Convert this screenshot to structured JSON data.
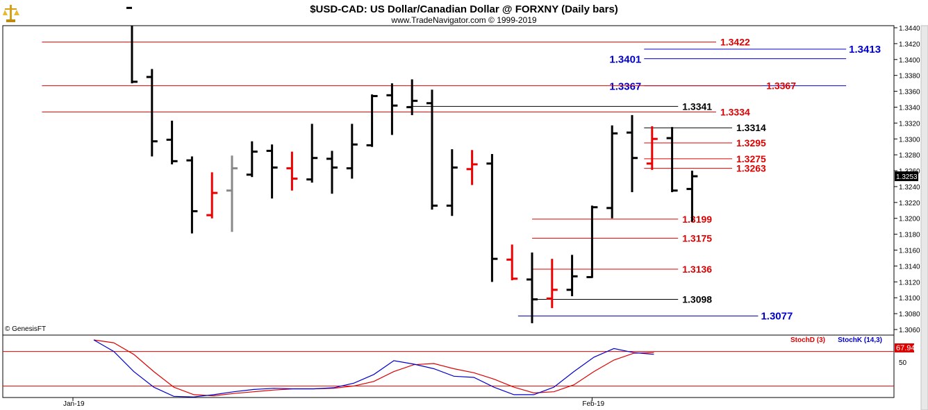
{
  "header": {
    "title": "$USD-CAD:  US Dollar/Canadian Dollar @ FORXNY  (Daily bars)",
    "subtitle": "www.TradeNavigator.com © 1999-2019",
    "copyright": "© GenesisFT"
  },
  "chart_data": {
    "type": "ohlc",
    "price_axis": {
      "min": 1.306,
      "max": 1.344,
      "ticks": [
        "1.3440",
        "1.3420",
        "1.3400",
        "1.3380",
        "1.3360",
        "1.3340",
        "1.3320",
        "1.3300",
        "1.3280",
        "1.3260",
        "1.3240",
        "1.3220",
        "1.3200",
        "1.3180",
        "1.3160",
        "1.3140",
        "1.3120",
        "1.3100",
        "1.3080",
        "1.3060"
      ],
      "last_price": "1.3253"
    },
    "date_labels": [
      {
        "label": "Jan-19",
        "index": 0
      },
      {
        "label": "Feb-19",
        "index": 23
      }
    ],
    "bars": [
      {
        "i": 0,
        "o": 1.3465,
        "h": 1.348,
        "l": 1.337,
        "c": 1.3372,
        "color": "#000000"
      },
      {
        "i": 1,
        "o": 1.3378,
        "h": 1.3388,
        "l": 1.3278,
        "c": 1.3297,
        "color": "#000000"
      },
      {
        "i": 2,
        "o": 1.3299,
        "h": 1.3323,
        "l": 1.3268,
        "c": 1.3272,
        "color": "#000000"
      },
      {
        "i": 3,
        "o": 1.3273,
        "h": 1.3278,
        "l": 1.3181,
        "c": 1.3209,
        "color": "#000000"
      },
      {
        "i": 4,
        "o": 1.3204,
        "h": 1.3258,
        "l": 1.32,
        "c": 1.3232,
        "color": "#ee0000"
      },
      {
        "i": 5,
        "o": 1.3235,
        "h": 1.3279,
        "l": 1.3183,
        "c": 1.3263,
        "color": "#888888"
      },
      {
        "i": 6,
        "o": 1.3255,
        "h": 1.3297,
        "l": 1.3252,
        "c": 1.3284,
        "color": "#000000"
      },
      {
        "i": 7,
        "o": 1.3285,
        "h": 1.3293,
        "l": 1.3225,
        "c": 1.3264,
        "color": "#000000"
      },
      {
        "i": 8,
        "o": 1.3263,
        "h": 1.3284,
        "l": 1.3235,
        "c": 1.325,
        "color": "#ee0000"
      },
      {
        "i": 9,
        "o": 1.3249,
        "h": 1.3319,
        "l": 1.3245,
        "c": 1.3276,
        "color": "#000000"
      },
      {
        "i": 10,
        "o": 1.3275,
        "h": 1.3285,
        "l": 1.3231,
        "c": 1.3264,
        "color": "#000000"
      },
      {
        "i": 11,
        "o": 1.3263,
        "h": 1.3319,
        "l": 1.325,
        "c": 1.3293,
        "color": "#000000"
      },
      {
        "i": 12,
        "o": 1.3292,
        "h": 1.3356,
        "l": 1.329,
        "c": 1.3354,
        "color": "#000000"
      },
      {
        "i": 13,
        "o": 1.3355,
        "h": 1.337,
        "l": 1.3305,
        "c": 1.3342,
        "color": "#000000"
      },
      {
        "i": 14,
        "o": 1.334,
        "h": 1.3375,
        "l": 1.333,
        "c": 1.3348,
        "color": "#000000"
      },
      {
        "i": 15,
        "o": 1.3345,
        "h": 1.3362,
        "l": 1.3211,
        "c": 1.3216,
        "color": "#000000"
      },
      {
        "i": 16,
        "o": 1.3216,
        "h": 1.3287,
        "l": 1.3203,
        "c": 1.3264,
        "color": "#000000"
      },
      {
        "i": 17,
        "o": 1.3262,
        "h": 1.3286,
        "l": 1.3242,
        "c": 1.3268,
        "color": "#ee0000"
      },
      {
        "i": 18,
        "o": 1.3269,
        "h": 1.3281,
        "l": 1.312,
        "c": 1.3149,
        "color": "#000000"
      },
      {
        "i": 19,
        "o": 1.3148,
        "h": 1.3167,
        "l": 1.3122,
        "c": 1.3124,
        "color": "#ee0000"
      },
      {
        "i": 20,
        "o": 1.3123,
        "h": 1.3157,
        "l": 1.3068,
        "c": 1.3098,
        "color": "#000000"
      },
      {
        "i": 21,
        "o": 1.3099,
        "h": 1.3149,
        "l": 1.3087,
        "c": 1.311,
        "color": "#ee0000"
      },
      {
        "i": 22,
        "o": 1.311,
        "h": 1.3154,
        "l": 1.3102,
        "c": 1.3127,
        "color": "#000000"
      },
      {
        "i": 23,
        "o": 1.3126,
        "h": 1.3216,
        "l": 1.3125,
        "c": 1.3214,
        "color": "#000000"
      },
      {
        "i": 24,
        "o": 1.3213,
        "h": 1.3317,
        "l": 1.32,
        "c": 1.3307,
        "color": "#000000"
      },
      {
        "i": 25,
        "o": 1.3308,
        "h": 1.333,
        "l": 1.3233,
        "c": 1.3276,
        "color": "#000000"
      },
      {
        "i": 26,
        "o": 1.3269,
        "h": 1.3316,
        "l": 1.3261,
        "c": 1.33,
        "color": "#ee0000"
      },
      {
        "i": 27,
        "o": 1.3301,
        "h": 1.3315,
        "l": 1.3233,
        "c": 1.3235,
        "color": "#000000"
      },
      {
        "i": 28,
        "o": 1.3237,
        "h": 1.326,
        "l": 1.3196,
        "c": 1.3253,
        "color": "#000000"
      }
    ],
    "levels": [
      {
        "value": "1.3422",
        "price": 1.3422,
        "color": "#dd0000",
        "from": -4.5,
        "to": 29.2
      },
      {
        "value": "1.3413",
        "price": 1.3413,
        "color": "#0000cc",
        "from": 25.6,
        "to": 35.7
      },
      {
        "value": "1.3401",
        "price": 1.3401,
        "color": "#0000cc",
        "from": 25.6,
        "to": 35.7,
        "label_left": true
      },
      {
        "value": "1.3367",
        "price": 1.3367,
        "color": "#0000cc",
        "from": 25.6,
        "to": 35.7,
        "label_left": true
      },
      {
        "value": "1.3367",
        "price": 1.3367,
        "color": "#dd0000",
        "from": -4.5,
        "to": 31.5
      },
      {
        "value": "1.3341",
        "price": 1.3341,
        "color": "#000000",
        "from": 13.8,
        "to": 27.3
      },
      {
        "value": "1.3334",
        "price": 1.3334,
        "color": "#dd0000",
        "from": -4.5,
        "to": 29.2
      },
      {
        "value": "1.3314",
        "price": 1.3314,
        "color": "#000000",
        "from": 25.6,
        "to": 30.0
      },
      {
        "value": "1.3295",
        "price": 1.3295,
        "color": "#dd0000",
        "from": 25.6,
        "to": 30.0
      },
      {
        "value": "1.3275",
        "price": 1.3275,
        "color": "#dd0000",
        "from": 25.6,
        "to": 30.0
      },
      {
        "value": "1.3263",
        "price": 1.3263,
        "color": "#dd0000",
        "from": 25.6,
        "to": 30.0
      },
      {
        "value": "1.3199",
        "price": 1.3199,
        "color": "#dd0000",
        "from": 20.0,
        "to": 27.3
      },
      {
        "value": "1.3175",
        "price": 1.3175,
        "color": "#dd0000",
        "from": 20.0,
        "to": 27.3
      },
      {
        "value": "1.3136",
        "price": 1.3136,
        "color": "#dd0000",
        "from": 20.0,
        "to": 27.3
      },
      {
        "value": "1.3098",
        "price": 1.3098,
        "color": "#000000",
        "from": 20.0,
        "to": 27.3
      },
      {
        "value": "1.3077",
        "price": 1.3077,
        "color": "#0000cc",
        "from": 19.3,
        "to": 31.3
      }
    ],
    "stochastic": {
      "legend_d": "StochD (3)",
      "legend_k": "StochK (14,3)",
      "d_color": "#dd0000",
      "k_color": "#0000cc",
      "value_label": "67.94",
      "tick_label": "50",
      "k_values": [
        100,
        80,
        45,
        18,
        2,
        1,
        5,
        10,
        14,
        16,
        15,
        15,
        17,
        25,
        40,
        64,
        58,
        50,
        37,
        35,
        18,
        5,
        5,
        18,
        45,
        70,
        85,
        78,
        75
      ],
      "d_values": [
        100,
        95,
        75,
        45,
        18,
        5,
        3,
        7,
        10,
        13,
        15,
        15,
        16,
        20,
        28,
        45,
        57,
        59,
        50,
        43,
        32,
        18,
        8,
        10,
        22,
        45,
        65,
        77,
        78
      ]
    }
  }
}
